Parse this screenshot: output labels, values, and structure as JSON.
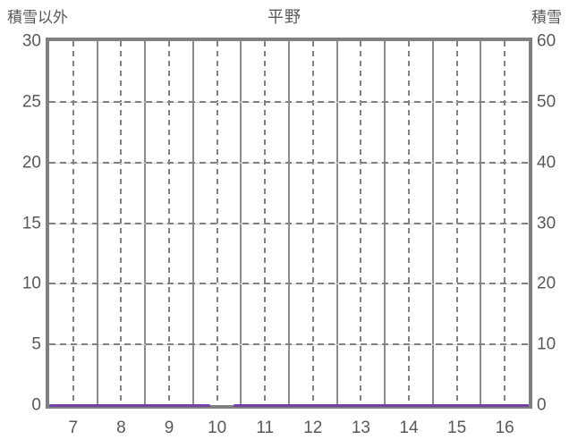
{
  "chart_data": {
    "type": "line",
    "title": "平野",
    "x_axis": {
      "range": [
        6.5,
        16.5
      ],
      "ticks": [
        7,
        8,
        9,
        10,
        11,
        12,
        13,
        14,
        15,
        16
      ],
      "solid_gridlines_at": [
        7.5,
        8.5,
        9.5,
        10.5,
        11.5,
        12.5,
        13.5,
        14.5,
        15.5
      ],
      "dashed_gridlines_at": [
        7,
        8,
        9,
        10,
        11,
        12,
        13,
        14,
        15,
        16
      ]
    },
    "left_axis": {
      "label": "積雪以外",
      "range": [
        0,
        30
      ],
      "ticks": [
        0,
        5,
        10,
        15,
        20,
        25,
        30
      ],
      "gridlines_at": [
        5,
        10,
        15,
        20,
        25
      ]
    },
    "right_axis": {
      "label": "積雪",
      "range": [
        0,
        60
      ],
      "ticks": [
        0,
        10,
        20,
        30,
        40,
        50,
        60
      ]
    },
    "series": [
      {
        "name": "積雪以外",
        "axis": "left",
        "color": "#7243A5",
        "constant_value": 0,
        "segments": [
          {
            "x_from": 6.5,
            "x_to": 9.85
          },
          {
            "x_from": 10.35,
            "x_to": 16.5
          }
        ],
        "gap_x": [
          9.85,
          10.35
        ]
      }
    ],
    "grid": {
      "frame_color": "#808080",
      "solid_line_color": "#8d8d8d",
      "dashed_line_color": "#818181",
      "light_line_color": "#d9d9d9",
      "text_color": "#595959",
      "legend": "none"
    }
  }
}
